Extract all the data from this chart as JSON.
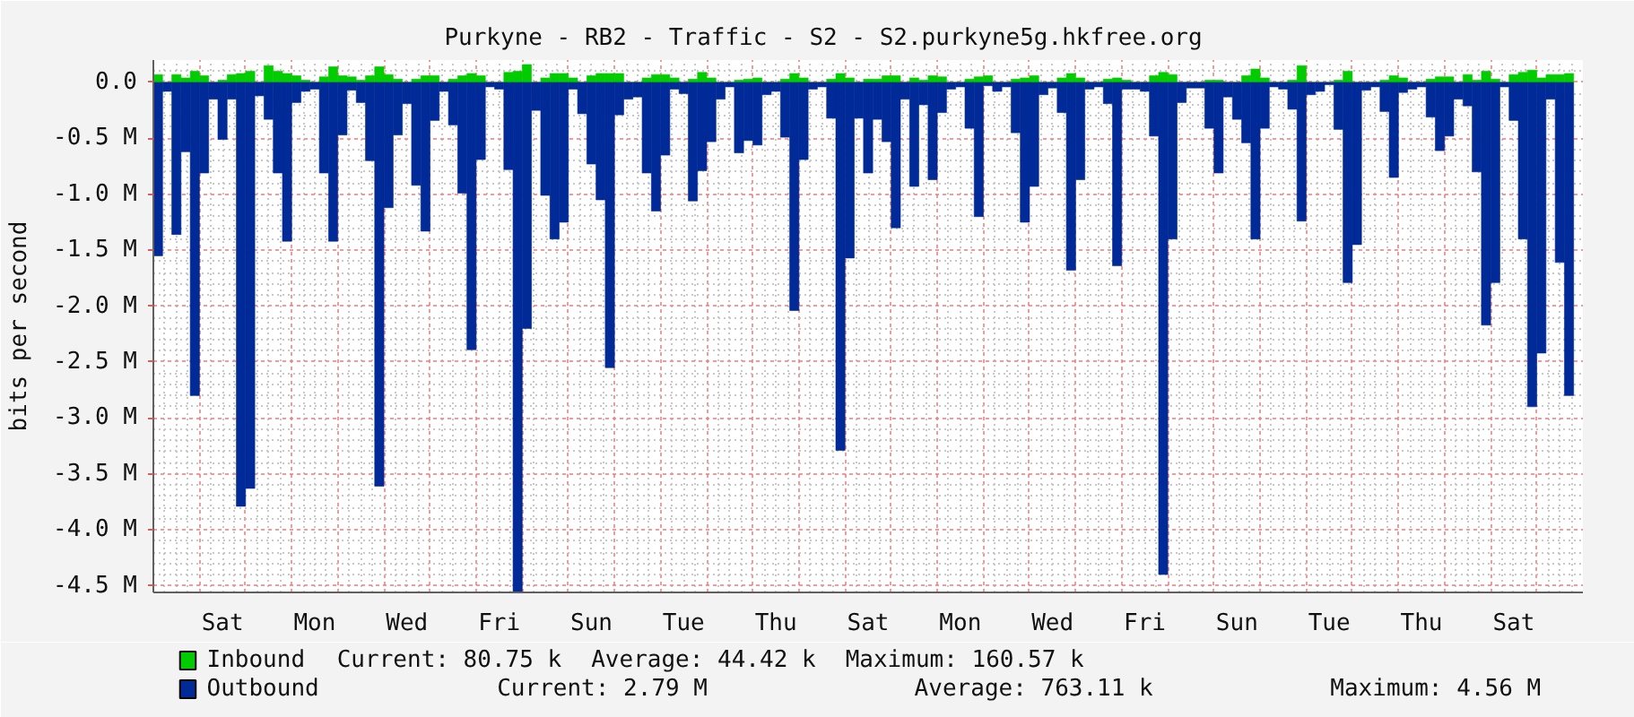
{
  "chart_data": {
    "type": "bar",
    "stacked": true,
    "title": "Purkyne - RB2 - Traffic - S2 - S2.purkyne5g.hkfree.org",
    "ylabel": "bits per second",
    "categories": [
      null,
      null,
      null,
      null,
      null,
      null,
      null,
      "Sat",
      null,
      null,
      null,
      null,
      null,
      null,
      null,
      null,
      null,
      "Mon",
      null,
      null,
      null,
      null,
      null,
      null,
      null,
      null,
      null,
      "Wed",
      null,
      null,
      null,
      null,
      null,
      null,
      null,
      null,
      null,
      "Fri",
      null,
      null,
      null,
      null,
      null,
      null,
      null,
      null,
      null,
      "Sun",
      null,
      null,
      null,
      null,
      null,
      null,
      null,
      null,
      null,
      "Tue",
      null,
      null,
      null,
      null,
      null,
      null,
      null,
      null,
      null,
      "Thu",
      null,
      null,
      null,
      null,
      null,
      null,
      null,
      null,
      null,
      "Sat",
      null,
      null,
      null,
      null,
      null,
      null,
      null,
      null,
      null,
      "Mon",
      null,
      null,
      null,
      null,
      null,
      null,
      null,
      null,
      null,
      "Wed",
      null,
      null,
      null,
      null,
      null,
      null,
      null,
      null,
      null,
      "Fri",
      null,
      null,
      null,
      null,
      null,
      null,
      null,
      null,
      null,
      "Sun",
      null,
      null,
      null,
      null,
      null,
      null,
      null,
      null,
      null,
      "Tue",
      null,
      null,
      null,
      null,
      null,
      null,
      null,
      null,
      null,
      "Thu",
      null,
      null,
      null,
      null,
      null,
      null,
      null,
      null,
      null,
      "Sat",
      null,
      null,
      null,
      null,
      null,
      null,
      null
    ],
    "ylim": [
      -4.56,
      0.2
    ],
    "yticks": [
      {
        "value": 0,
        "label": "0.0"
      },
      {
        "value": -0.5,
        "label": "-0.5 M"
      },
      {
        "value": -1,
        "label": "-1.0 M"
      },
      {
        "value": -1.5,
        "label": "-1.5 M"
      },
      {
        "value": -2,
        "label": "-2.0 M"
      },
      {
        "value": -2.5,
        "label": "-2.5 M"
      },
      {
        "value": -3,
        "label": "-3.0 M"
      },
      {
        "value": -3.5,
        "label": "-3.5 M"
      },
      {
        "value": -4,
        "label": "-4.0 M"
      },
      {
        "value": -4.5,
        "label": "-4.5 M"
      }
    ],
    "grid": true,
    "legend": "bottom",
    "annotations": [
      "Current: 80.75 k",
      "Average: 44.42 k",
      "Maximum: 160.57 k",
      "Current: 2.79 M",
      "Average: 763.11 k",
      "Maximum: 4.56 M"
    ],
    "series": [
      {
        "name": "Inbound",
        "color": "#00cc00",
        "values": [
          0.07,
          0,
          0.07,
          0.04,
          0.1,
          0.06,
          0,
          0.02,
          0.07,
          0.08,
          0.1,
          0,
          0.15,
          0.1,
          0.08,
          0.06,
          0.02,
          0,
          0.05,
          0.14,
          0.06,
          0.05,
          0.02,
          0.06,
          0.14,
          0.07,
          0.03,
          0,
          0.03,
          0.06,
          0.06,
          0,
          0.03,
          0.06,
          0.08,
          0.06,
          0,
          0,
          0.09,
          0.1,
          0.16,
          0,
          0.04,
          0.08,
          0.08,
          0.04,
          0,
          0.06,
          0.08,
          0.08,
          0.08,
          0,
          0,
          0.04,
          0.07,
          0.07,
          0.04,
          0,
          0.03,
          0.09,
          0.04,
          0,
          0,
          0.02,
          0.03,
          0.04,
          0,
          0,
          0.03,
          0.08,
          0.04,
          0,
          0,
          0.03,
          0.08,
          0.04,
          0,
          0.03,
          0.03,
          0.06,
          0.06,
          0,
          0.04,
          0.02,
          0.06,
          0.05,
          0,
          0,
          0.03,
          0.05,
          0.06,
          0,
          0,
          0.03,
          0.04,
          0.06,
          0,
          0,
          0.04,
          0.08,
          0.04,
          0,
          0,
          0.03,
          0.04,
          0.02,
          0,
          0,
          0.06,
          0.09,
          0.07,
          0,
          0,
          0,
          0.02,
          0.02,
          0,
          0,
          0.06,
          0.12,
          0.04,
          0,
          0,
          0.02,
          0.15,
          0,
          0,
          0,
          0.02,
          0.1,
          0,
          0,
          0,
          0.02,
          0.06,
          0.04,
          0,
          0,
          0.03,
          0.05,
          0.05,
          0,
          0.07,
          0.02,
          0.1,
          0.03,
          0,
          0.07,
          0.09,
          0.11,
          0.04,
          0.07,
          0.07,
          0.08,
          null
        ]
      },
      {
        "name": "Outbound",
        "color": "#002a97",
        "values": [
          -1.55,
          -0.08,
          -1.36,
          -0.62,
          -2.8,
          -0.81,
          -0.15,
          -0.51,
          -0.15,
          -3.79,
          -3.63,
          -0.12,
          -0.33,
          -0.81,
          -1.42,
          -0.18,
          -0.08,
          -0.06,
          -0.81,
          -1.42,
          -0.47,
          -0.07,
          -0.18,
          -0.7,
          -3.61,
          -1.12,
          -0.47,
          -0.19,
          -0.92,
          -1.33,
          -0.34,
          -0.08,
          -0.38,
          -0.99,
          -2.39,
          -0.69,
          -0.04,
          -0.06,
          -0.78,
          -4.56,
          -2.2,
          -0.25,
          -1.01,
          -1.4,
          -1.25,
          -0.06,
          -0.28,
          -0.73,
          -1.05,
          -2.55,
          -0.29,
          -0.15,
          -0.13,
          -0.81,
          -1.15,
          -0.65,
          -0.06,
          -0.1,
          -1.06,
          -0.79,
          -0.53,
          -0.15,
          -0.04,
          -0.63,
          -0.52,
          -0.56,
          -0.11,
          -0.08,
          -0.49,
          -2.04,
          -0.69,
          -0.06,
          -0.04,
          -0.32,
          -3.29,
          -1.57,
          -0.32,
          -0.81,
          -0.33,
          -0.53,
          -1.3,
          -0.15,
          -0.93,
          -0.2,
          -0.87,
          -0.27,
          -0.06,
          -0.04,
          -0.41,
          -1.2,
          -0.03,
          -0.08,
          -0.04,
          -0.45,
          -1.25,
          -0.93,
          -0.11,
          -0.05,
          -0.27,
          -1.68,
          -0.87,
          -0.06,
          -0.04,
          -0.19,
          -1.64,
          -0.06,
          -0.06,
          -0.08,
          -0.48,
          -4.4,
          -1.4,
          -0.18,
          -0.05,
          -0.05,
          -0.41,
          -0.81,
          -0.13,
          -0.33,
          -0.54,
          -1.4,
          -0.41,
          -0.04,
          -0.06,
          -0.24,
          -1.24,
          -0.11,
          -0.08,
          -0.02,
          -0.42,
          -1.79,
          -1.45,
          -0.07,
          -0.04,
          -0.26,
          -0.85,
          -0.09,
          -0.06,
          -0.04,
          -0.31,
          -0.61,
          -0.48,
          -0.15,
          -0.21,
          -0.8,
          -2.17,
          -1.79,
          -0.04,
          -0.34,
          -1.4,
          -2.9,
          -2.42,
          -0.15,
          -1.61,
          -2.8,
          null
        ]
      }
    ]
  }
}
